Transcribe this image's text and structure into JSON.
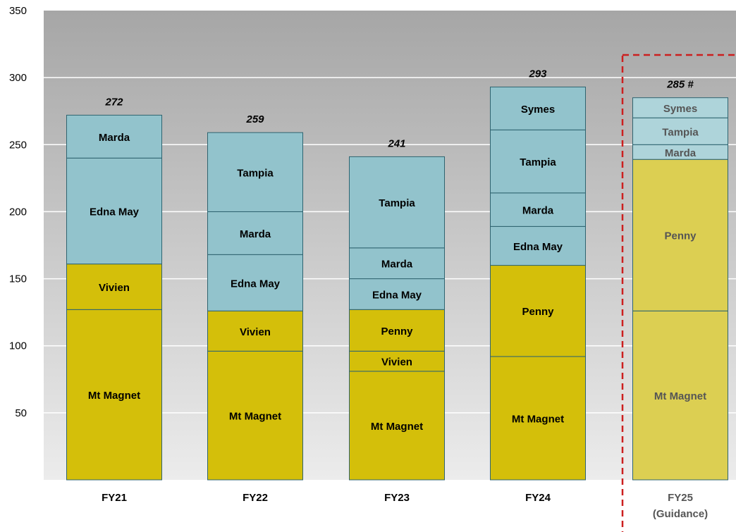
{
  "chart_data": {
    "type": "bar",
    "stacked": true,
    "title": "",
    "xlabel": "",
    "ylabel": "",
    "ylim": [
      0,
      350
    ],
    "yticks": [
      50,
      100,
      150,
      200,
      250,
      300,
      350
    ],
    "grid": true,
    "categories": [
      {
        "label": "FY21",
        "sublabel": ""
      },
      {
        "label": "FY22",
        "sublabel": ""
      },
      {
        "label": "FY23",
        "sublabel": ""
      },
      {
        "label": "FY24",
        "sublabel": ""
      },
      {
        "label": "FY25",
        "sublabel": "(Guidance)"
      }
    ],
    "totals": [
      "272",
      "259",
      "241",
      "293",
      "285 #"
    ],
    "highlighted_category": "FY25",
    "colors": {
      "plot_top": "#a6a6a6",
      "plot_bottom": "#ececec",
      "gold": "#d4bf0a",
      "blue": "#92c3cc",
      "gold_faded": "#dccf52",
      "blue_faded": "#aed4da",
      "highlight_border": "#cc1f1f",
      "segment_border": "#2f6470"
    },
    "bars": [
      {
        "category": "FY21",
        "segments": [
          {
            "name": "Mt Magnet",
            "value": 127,
            "group": "gold"
          },
          {
            "name": "Vivien",
            "value": 34,
            "group": "gold"
          },
          {
            "name": "Edna May",
            "value": 79,
            "group": "blue"
          },
          {
            "name": "Marda",
            "value": 32,
            "group": "blue"
          }
        ]
      },
      {
        "category": "FY22",
        "segments": [
          {
            "name": "Mt Magnet",
            "value": 96,
            "group": "gold"
          },
          {
            "name": "Vivien",
            "value": 30,
            "group": "gold"
          },
          {
            "name": "Edna May",
            "value": 42,
            "group": "blue"
          },
          {
            "name": "Marda",
            "value": 32,
            "group": "blue"
          },
          {
            "name": "Tampia",
            "value": 59,
            "group": "blue"
          }
        ]
      },
      {
        "category": "FY23",
        "segments": [
          {
            "name": "Mt Magnet",
            "value": 81,
            "group": "gold"
          },
          {
            "name": "Vivien",
            "value": 15,
            "group": "gold"
          },
          {
            "name": "Penny",
            "value": 31,
            "group": "gold"
          },
          {
            "name": "Edna May",
            "value": 23,
            "group": "blue"
          },
          {
            "name": "Marda",
            "value": 23,
            "group": "blue"
          },
          {
            "name": "Tampia",
            "value": 68,
            "group": "blue"
          }
        ]
      },
      {
        "category": "FY24",
        "segments": [
          {
            "name": "Mt Magnet",
            "value": 92,
            "group": "gold"
          },
          {
            "name": "Penny",
            "value": 68,
            "group": "gold"
          },
          {
            "name": "Edna May",
            "value": 29,
            "group": "blue"
          },
          {
            "name": "Marda",
            "value": 25,
            "group": "blue"
          },
          {
            "name": "Tampia",
            "value": 47,
            "group": "blue"
          },
          {
            "name": "Symes",
            "value": 32,
            "group": "blue"
          }
        ]
      },
      {
        "category": "FY25",
        "faded": true,
        "segments": [
          {
            "name": "Mt Magnet",
            "value": 126,
            "group": "gold"
          },
          {
            "name": "Penny",
            "value": 113,
            "group": "gold"
          },
          {
            "name": "Marda",
            "value": 11,
            "group": "blue"
          },
          {
            "name": "Tampia",
            "value": 20,
            "group": "blue"
          },
          {
            "name": "Symes",
            "value": 15,
            "group": "blue"
          }
        ]
      }
    ]
  }
}
